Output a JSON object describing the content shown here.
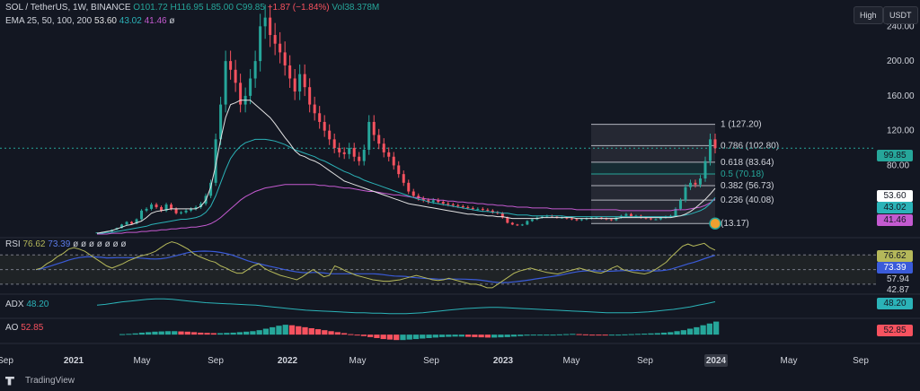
{
  "header": {
    "symbol": "SOL / TetherUS, 1W, BINANCE",
    "open": "O101.72",
    "high": "H116.95",
    "low": "L85.00",
    "close": "C99.85",
    "change": "−1.87 (−1.84%)",
    "volume": "Vol38.378M",
    "ema_label": "EMA 25, 50, 100, 200",
    "ema_values": [
      "53.60",
      "43.02",
      "41.46",
      "ø"
    ]
  },
  "toolbar": {
    "high_btn": "High",
    "currency_btn": "USDT"
  },
  "price_tags": {
    "last": "99.85",
    "ema25": "53.60",
    "ema50": "43.02",
    "ema100": "41.46"
  },
  "fib_levels": [
    {
      "label": "1 (127.20)",
      "price": 127.2
    },
    {
      "label": "0.786 (102.80)",
      "price": 102.8
    },
    {
      "label": "0.618 (83.64)",
      "price": 83.64
    },
    {
      "label": "0.5 (70.18)",
      "price": 70.18
    },
    {
      "label": "0.382 (56.73)",
      "price": 56.73
    },
    {
      "label": "0.236 (40.08)",
      "price": 40.08
    },
    {
      "label": "(13.17)",
      "price": 13.17
    }
  ],
  "rsi": {
    "label": "RSI",
    "v1": "76.62",
    "v2": "73.39",
    "extra": "ø ø ø ø ø ø ø",
    "tags": [
      "76.62",
      "73.39",
      "57.94",
      "42.87"
    ]
  },
  "adx": {
    "label": "ADX",
    "value": "48.20"
  },
  "ao": {
    "label": "AO",
    "value": "52.85"
  },
  "brand": "TradingView",
  "colors": {
    "bg": "#131722",
    "up": "#26a69a",
    "down": "#f7525f",
    "rsi": "#b5b85a",
    "rsi_ma": "#3a5bd9",
    "adx": "#2bb3b8"
  },
  "chart_data": {
    "type": "candlestick",
    "axis_y_ticks": [
      240,
      200,
      160,
      120,
      80
    ],
    "axis_y_tick_labels": [
      "240.00",
      "200.00",
      "160.00",
      "120.00",
      "80.00"
    ],
    "ylim": [
      0,
      262
    ],
    "x_ticks": [
      "Sep",
      "2021",
      "May",
      "Sep",
      "2022",
      "May",
      "Sep",
      "2023",
      "May",
      "Sep",
      "2024",
      "May",
      "Sep"
    ],
    "close_series": [
      2.9,
      3.2,
      4,
      6,
      8,
      12,
      15,
      13,
      18,
      28,
      30,
      35,
      32,
      28,
      35,
      30,
      25,
      26,
      28,
      30,
      32,
      36,
      45,
      60,
      110,
      150,
      200,
      190,
      175,
      150,
      160,
      180,
      200,
      240,
      250,
      230,
      220,
      210,
      195,
      180,
      165,
      185,
      170,
      150,
      140,
      130,
      120,
      110,
      100,
      95,
      93,
      100,
      90,
      85,
      98,
      130,
      115,
      105,
      95,
      90,
      80,
      70,
      60,
      50,
      45,
      42,
      40,
      38,
      40,
      38,
      36,
      35,
      34,
      33,
      32,
      31,
      30,
      30,
      29,
      28,
      26,
      25,
      20,
      14,
      12,
      11,
      12,
      16,
      18,
      20,
      21,
      22,
      21,
      20,
      20,
      19,
      18,
      17,
      18,
      19,
      20,
      20,
      19,
      18,
      17,
      20,
      22,
      24,
      21,
      22,
      20,
      19,
      18,
      18,
      20,
      21,
      22,
      30,
      40,
      55,
      60,
      58,
      65,
      85,
      110,
      99.85
    ],
    "ema25": [
      2,
      3,
      4,
      5,
      7,
      9,
      11,
      12,
      14,
      16,
      20,
      25,
      27,
      28,
      29,
      30,
      30,
      30,
      30,
      30,
      30,
      33,
      40,
      55,
      80,
      110,
      135,
      150,
      152,
      155,
      155,
      155,
      150,
      145,
      140,
      135,
      128,
      120,
      112,
      105,
      97,
      92,
      90,
      87,
      85,
      82,
      78,
      74,
      70,
      66,
      62,
      60,
      58,
      56,
      54,
      52,
      50,
      48,
      46,
      44,
      42,
      40,
      38,
      36,
      35,
      34,
      33,
      32,
      31,
      30,
      29,
      28,
      27,
      26,
      25,
      24,
      24,
      23,
      23,
      22,
      22,
      21,
      21,
      20,
      19,
      19,
      19,
      19,
      19,
      19,
      20,
      20,
      20,
      20,
      20,
      20,
      20,
      19,
      19,
      19,
      19,
      19,
      19,
      19,
      19,
      19,
      20,
      20,
      20,
      20,
      20,
      20,
      20,
      20,
      20,
      20,
      20,
      21,
      22,
      24,
      27,
      31,
      36,
      41,
      47,
      53.6
    ],
    "ema50": [
      2,
      2,
      3,
      3,
      4,
      5,
      6,
      7,
      8,
      9,
      10,
      12,
      13,
      14,
      15,
      16,
      17,
      18,
      18,
      19,
      20,
      22,
      26,
      33,
      45,
      60,
      75,
      88,
      96,
      102,
      106,
      108,
      110,
      110,
      110,
      109,
      108,
      106,
      104,
      101,
      98,
      96,
      94,
      92,
      90,
      87,
      85,
      82,
      79,
      76,
      73,
      71,
      68,
      66,
      63,
      61,
      59,
      57,
      55,
      53,
      51,
      49,
      47,
      45,
      43,
      41,
      40,
      38,
      37,
      36,
      35,
      34,
      33,
      32,
      31,
      30,
      29,
      28,
      27,
      27,
      26,
      26,
      25,
      25,
      24,
      23,
      23,
      23,
      22,
      22,
      22,
      22,
      22,
      22,
      22,
      21,
      21,
      21,
      21,
      21,
      21,
      21,
      21,
      21,
      21,
      21,
      21,
      21,
      21,
      21,
      21,
      21,
      21,
      21,
      21,
      21,
      21,
      22,
      22,
      23,
      24,
      26,
      28,
      31,
      36,
      43.02
    ],
    "ema100": [
      1,
      1,
      1,
      2,
      2,
      2,
      3,
      3,
      3,
      4,
      4,
      5,
      5,
      6,
      6,
      7,
      7,
      8,
      8,
      9,
      9,
      10,
      11,
      13,
      16,
      20,
      25,
      30,
      35,
      40,
      44,
      47,
      50,
      52,
      54,
      55,
      56,
      57,
      58,
      58,
      58,
      58,
      58,
      58,
      58,
      57,
      57,
      56,
      56,
      55,
      54,
      54,
      53,
      52,
      51,
      50,
      50,
      49,
      48,
      47,
      46,
      46,
      45,
      44,
      43,
      43,
      42,
      41,
      41,
      40,
      40,
      39,
      39,
      38,
      38,
      37,
      37,
      36,
      36,
      35,
      35,
      34,
      34,
      33,
      33,
      32,
      32,
      32,
      31,
      31,
      31,
      31,
      30,
      30,
      30,
      30,
      30,
      29,
      29,
      29,
      29,
      29,
      29,
      29,
      29,
      29,
      28,
      28,
      28,
      28,
      28,
      28,
      28,
      28,
      28,
      28,
      28,
      29,
      29,
      29,
      30,
      31,
      32,
      34,
      37,
      41.46
    ],
    "rsi_series": [
      50,
      52,
      58,
      62,
      68,
      72,
      78,
      80,
      78,
      75,
      70,
      65,
      60,
      55,
      52,
      55,
      58,
      62,
      65,
      68,
      70,
      72,
      75,
      80,
      85,
      88,
      86,
      82,
      78,
      72,
      68,
      65,
      62,
      60,
      55,
      52,
      48,
      45,
      45,
      50,
      55,
      58,
      52,
      48,
      45,
      42,
      40,
      38,
      36,
      40,
      45,
      50,
      45,
      40,
      42,
      55,
      52,
      48,
      45,
      42,
      40,
      38,
      36,
      35,
      34,
      34,
      35,
      36,
      38,
      40,
      42,
      40,
      38,
      36,
      35,
      36,
      38,
      36,
      34,
      32,
      30,
      30,
      28,
      25,
      25,
      30,
      35,
      40,
      45,
      48,
      50,
      52,
      50,
      48,
      46,
      45,
      44,
      46,
      48,
      50,
      52,
      50,
      48,
      46,
      45,
      48,
      52,
      55,
      50,
      48,
      46,
      45,
      44,
      46,
      50,
      55,
      60,
      68,
      75,
      82,
      85,
      82,
      84,
      86,
      80,
      76.62
    ],
    "adx_series": [
      40,
      42,
      45,
      48,
      50,
      52,
      54,
      55,
      55,
      54,
      52,
      50,
      48,
      46,
      45,
      44,
      43,
      42,
      41,
      40,
      38,
      36,
      34,
      32,
      30,
      28,
      27,
      26,
      25,
      24,
      23,
      22,
      22,
      21,
      21,
      20,
      20,
      20,
      21,
      22,
      24,
      26,
      28,
      30,
      32,
      33,
      34,
      35,
      35,
      34,
      33,
      32,
      31,
      30,
      29,
      28,
      27,
      26,
      25,
      24,
      23,
      22,
      22,
      22,
      22,
      23,
      24,
      26,
      28,
      30,
      33,
      36,
      40,
      44,
      48.2
    ],
    "ao_series": [
      2,
      3,
      5,
      8,
      10,
      12,
      13,
      14,
      14,
      13,
      12,
      10,
      8,
      7,
      6,
      6,
      7,
      8,
      10,
      12,
      14,
      18,
      24,
      30,
      36,
      40,
      38,
      34,
      30,
      26,
      22,
      18,
      14,
      10,
      6,
      2,
      -2,
      -6,
      -10,
      -14,
      -18,
      -20,
      -22,
      -22,
      -20,
      -18,
      -16,
      -14,
      -12,
      -10,
      -9,
      -8,
      -8,
      -9,
      -10,
      -11,
      -12,
      -12,
      -11,
      -10,
      -8,
      -6,
      -4,
      -3,
      -2,
      -1,
      0,
      1,
      2,
      3,
      2,
      1,
      0,
      -1,
      -2,
      -1,
      0,
      1,
      2,
      3,
      4,
      5,
      6,
      8,
      10,
      14,
      18,
      24,
      30,
      38,
      45,
      52.85
    ]
  }
}
